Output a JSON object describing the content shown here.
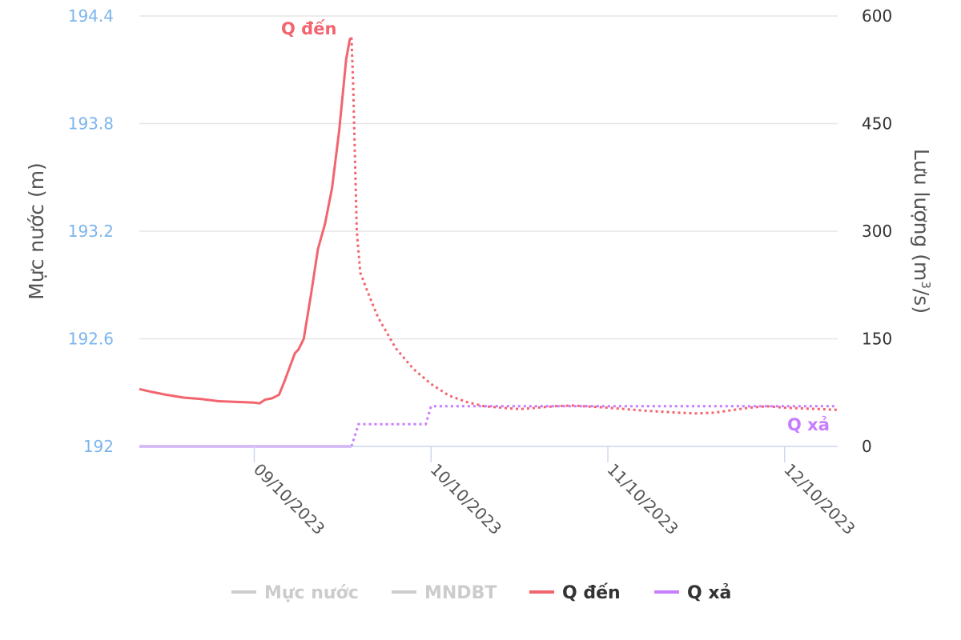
{
  "chart_data": {
    "type": "line",
    "title": "",
    "y_axis_left": {
      "title": "Mực nước (m)",
      "ticks": [
        "194.4",
        "193.8",
        "193.2",
        "192.6",
        "192"
      ],
      "range": [
        192,
        194.4
      ],
      "color": "#7cb5ec"
    },
    "y_axis_right": {
      "title_main": "Lưu lượng (m",
      "title_sup": "3",
      "title_end": "/s)",
      "ticks": [
        "600",
        "450",
        "300",
        "150",
        "0"
      ],
      "range": [
        0,
        600
      ]
    },
    "x_axis": {
      "range_days": [
        8.35,
        12.3
      ],
      "ticks": [
        {
          "label": "09/10/2023",
          "day": 9.0
        },
        {
          "label": "10/10/2023",
          "day": 10.0
        },
        {
          "label": "11/10/2023",
          "day": 11.0
        },
        {
          "label": "12/10/2023",
          "day": 12.0
        }
      ]
    },
    "grid": true,
    "legend_position": "bottom",
    "legend": [
      {
        "name": "Mực nước",
        "color": "#cccccc",
        "text_color": "#cccccc"
      },
      {
        "name": "MNDBT",
        "color": "#cccccc",
        "text_color": "#cccccc"
      },
      {
        "name": "Q đến",
        "color": "#f2646e",
        "text_color": "#333333"
      },
      {
        "name": "Q xả",
        "color": "#c77dff",
        "text_color": "#333333"
      }
    ],
    "series": [
      {
        "name": "Q đến",
        "color": "#f2646e",
        "label": "Q đến",
        "observed": [
          [
            8.35,
            80
          ],
          [
            8.42,
            76
          ],
          [
            8.5,
            72
          ],
          [
            8.6,
            68
          ],
          [
            8.7,
            66
          ],
          [
            8.8,
            63
          ],
          [
            8.9,
            62
          ],
          [
            9.0,
            61
          ],
          [
            9.03,
            60
          ],
          [
            9.06,
            65
          ],
          [
            9.1,
            67
          ],
          [
            9.14,
            72
          ],
          [
            9.17,
            90
          ],
          [
            9.2,
            110
          ],
          [
            9.23,
            130
          ],
          [
            9.25,
            135
          ],
          [
            9.28,
            150
          ],
          [
            9.32,
            210
          ],
          [
            9.36,
            275
          ],
          [
            9.4,
            310
          ],
          [
            9.44,
            360
          ],
          [
            9.48,
            440
          ],
          [
            9.5,
            490
          ],
          [
            9.52,
            540
          ],
          [
            9.54,
            567
          ],
          [
            9.55,
            570
          ]
        ],
        "forecast": [
          [
            9.55,
            570
          ],
          [
            9.56,
            500
          ],
          [
            9.58,
            300
          ],
          [
            9.6,
            242
          ],
          [
            9.65,
            210
          ],
          [
            9.7,
            180
          ],
          [
            9.8,
            137
          ],
          [
            9.9,
            108
          ],
          [
            10.0,
            87
          ],
          [
            10.1,
            71
          ],
          [
            10.2,
            62
          ],
          [
            10.3,
            56
          ],
          [
            10.5,
            52
          ],
          [
            10.7,
            56
          ],
          [
            10.8,
            57
          ],
          [
            11.0,
            54
          ],
          [
            11.2,
            50
          ],
          [
            11.4,
            47
          ],
          [
            11.5,
            46
          ],
          [
            11.6,
            47
          ],
          [
            11.8,
            54
          ],
          [
            11.9,
            56
          ],
          [
            12.0,
            54
          ],
          [
            12.3,
            51
          ]
        ]
      },
      {
        "name": "Q xả",
        "color": "#c77dff",
        "label": "Q xả",
        "observed": [
          [
            8.35,
            0
          ],
          [
            9.55,
            0
          ]
        ],
        "forecast": [
          [
            9.55,
            0
          ],
          [
            9.59,
            31
          ],
          [
            9.97,
            31
          ],
          [
            10.0,
            56
          ],
          [
            12.3,
            56
          ]
        ]
      }
    ]
  }
}
